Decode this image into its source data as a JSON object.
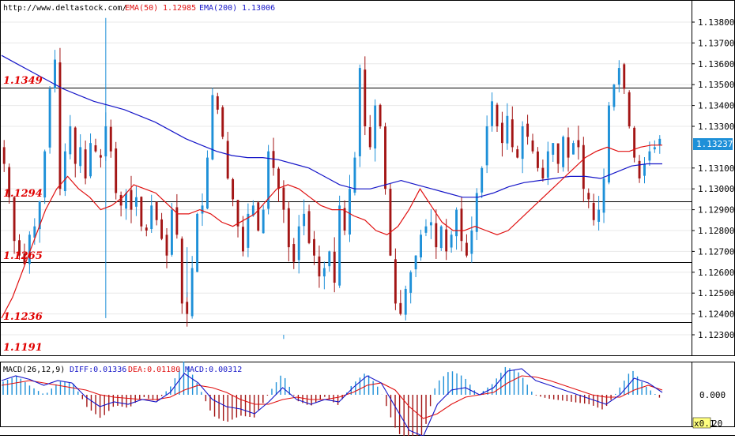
{
  "header": {
    "url": "http://www.deltastock.com/",
    "ema50_label": "EMA(50)",
    "ema50_value": "1.12985",
    "ema200_label": "EMA(200)",
    "ema200_value": "1.13006"
  },
  "macd_header": {
    "title": "MACD(26,12,9)",
    "diff": "DIFF:0.01336",
    "dea": "DEA:0.01180",
    "macd": "MACD:0.00312"
  },
  "price_axis": {
    "ticks": [
      "1.13800",
      "1.13700",
      "1.13600",
      "1.13500",
      "1.13400",
      "1.13300",
      "1.13100",
      "1.13000",
      "1.12900",
      "1.12800",
      "1.12700",
      "1.12600",
      "1.12500",
      "1.12400",
      "1.12300"
    ],
    "current_price": "1.13237"
  },
  "macd_axis": {
    "zero_label": "0.000",
    "scale_label": "x0.1",
    "bottom_label": "20"
  },
  "levels": [
    {
      "label": "1.1349",
      "value": 1.13485
    },
    {
      "label": "1.1294",
      "value": 1.1294
    },
    {
      "label": "1.1265",
      "value": 1.1265
    },
    {
      "label": "1.1236",
      "value": 1.1236
    },
    {
      "label": "1.1191",
      "value": null
    }
  ],
  "colors": {
    "up": "#1e90d8",
    "down": "#a31515",
    "ema50": "#e01010",
    "ema200": "#1515c8",
    "level_line": "#000000",
    "level_label": "#e00000",
    "current_bg": "#1e90d8"
  },
  "chart_data": {
    "type": "candlestick",
    "ylim": [
      1.1222,
      1.1386
    ],
    "yticks": [
      1.138,
      1.137,
      1.136,
      1.135,
      1.134,
      1.133,
      1.131,
      1.13,
      1.129,
      1.128,
      1.127,
      1.126,
      1.125,
      1.124,
      1.123
    ],
    "close_series": [
      1.1312,
      1.1296,
      1.1275,
      1.1268,
      1.1264,
      1.1278,
      1.1282,
      1.1294,
      1.1318,
      1.1348,
      1.1362,
      1.13,
      1.1318,
      1.133,
      1.1312,
      1.132,
      1.1305,
      1.1322,
      1.1318,
      1.1315,
      1.133,
      1.1318,
      1.1298,
      1.1292,
      1.1298,
      1.129,
      1.1296,
      1.1282,
      1.128,
      1.1292,
      1.1285,
      1.1276,
      1.1268,
      1.129,
      1.1278,
      1.1245,
      1.124,
      1.1262,
      1.1288,
      1.1292,
      1.1315,
      1.1345,
      1.1338,
      1.1325,
      1.1305,
      1.1295,
      1.1282,
      1.127,
      1.1288,
      1.1292,
      1.128,
      1.129,
      1.1318,
      1.131,
      1.13,
      1.129,
      1.1272,
      1.1265,
      1.1282,
      1.1288,
      1.1274,
      1.1268,
      1.1258,
      1.1262,
      1.127,
      1.1255,
      1.1292,
      1.128,
      1.13,
      1.1315,
      1.1358,
      1.133,
      1.132,
      1.134,
      1.133,
      1.13,
      1.1268,
      1.1245,
      1.124,
      1.1252,
      1.126,
      1.1268,
      1.1278,
      1.1282,
      1.1284,
      1.1272,
      1.1282,
      1.127,
      1.1278,
      1.129,
      1.1275,
      1.1268,
      1.128,
      1.1298,
      1.131,
      1.133,
      1.1342,
      1.133,
      1.1322,
      1.1335,
      1.132,
      1.1315,
      1.133,
      1.1325,
      1.1318,
      1.131,
      1.1305,
      1.1318,
      1.1322,
      1.1312,
      1.1325,
      1.1315,
      1.1322,
      1.132,
      1.13,
      1.1295,
      1.1285,
      1.129,
      1.1305,
      1.134,
      1.135,
      1.1358,
      1.1348,
      1.133,
      1.1315,
      1.1305,
      1.1312,
      1.1318,
      1.132,
      1.1324
    ],
    "ema50": [
      1.1238,
      1.1248,
      1.1262,
      1.1276,
      1.129,
      1.13,
      1.1306,
      1.13,
      1.1296,
      1.129,
      1.1292,
      1.1296,
      1.1302,
      1.13,
      1.1298,
      1.1293,
      1.1288,
      1.1288,
      1.129,
      1.1288,
      1.1284,
      1.1282,
      1.1285,
      1.1288,
      1.1294,
      1.13,
      1.1302,
      1.13,
      1.1296,
      1.1292,
      1.129,
      1.129,
      1.1287,
      1.1285,
      1.128,
      1.1278,
      1.1282,
      1.129,
      1.13,
      1.1292,
      1.1284,
      1.128,
      1.128,
      1.1282,
      1.128,
      1.1278,
      1.128,
      1.1285,
      1.129,
      1.1295,
      1.13,
      1.1305,
      1.131,
      1.1315,
      1.1318,
      1.132,
      1.1318,
      1.1318,
      1.132,
      1.1321,
      1.1321
    ],
    "ema200": [
      1.1364,
      1.136,
      1.1356,
      1.1352,
      1.1348,
      1.1345,
      1.1342,
      1.134,
      1.1338,
      1.1335,
      1.1332,
      1.1328,
      1.1324,
      1.1321,
      1.1318,
      1.1316,
      1.1315,
      1.1315,
      1.1314,
      1.1312,
      1.131,
      1.1306,
      1.1302,
      1.13,
      1.13,
      1.1302,
      1.1304,
      1.1302,
      1.13,
      1.1298,
      1.1296,
      1.1296,
      1.1298,
      1.1301,
      1.1303,
      1.1304,
      1.1305,
      1.1306,
      1.1306,
      1.1305,
      1.1308,
      1.1311,
      1.1312,
      1.1312
    ],
    "macd_diff": [
      0.012,
      0.016,
      0.013,
      0.008,
      0.012,
      0.01,
      -0.002,
      -0.01,
      -0.006,
      -0.008,
      -0.004,
      -0.006,
      0.002,
      0.018,
      0.01,
      -0.004,
      -0.01,
      -0.012,
      -0.016,
      -0.006,
      0.006,
      -0.004,
      -0.008,
      -0.004,
      -0.006,
      0.006,
      0.016,
      0.01,
      -0.01,
      -0.03,
      -0.035,
      -0.008,
      0.004,
      0.006,
      0.0,
      0.006,
      0.02,
      0.022,
      0.012,
      0.008,
      0.004,
      0.0,
      -0.004,
      -0.008,
      0.0,
      0.014,
      0.01,
      0.002
    ],
    "macd_dea": [
      0.008,
      0.01,
      0.012,
      0.01,
      0.008,
      0.006,
      0.004,
      0.0,
      -0.002,
      -0.003,
      -0.004,
      -0.004,
      -0.002,
      0.004,
      0.008,
      0.006,
      0.002,
      -0.004,
      -0.008,
      -0.008,
      -0.004,
      -0.002,
      -0.004,
      -0.004,
      -0.002,
      0.002,
      0.008,
      0.01,
      0.004,
      -0.01,
      -0.02,
      -0.016,
      -0.008,
      -0.002,
      0.0,
      0.002,
      0.01,
      0.016,
      0.015,
      0.012,
      0.008,
      0.004,
      0.0,
      -0.002,
      -0.002,
      0.004,
      0.008,
      0.004
    ],
    "macd_hist_range": [
      -0.035,
      0.018
    ]
  }
}
